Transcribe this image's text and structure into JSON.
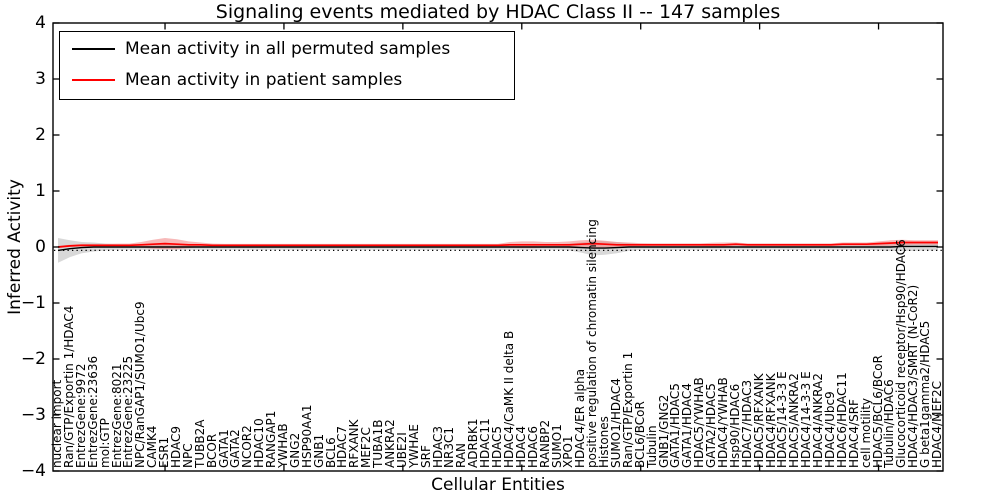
{
  "title": "Signaling events mediated by HDAC Class II -- 147 samples",
  "legend": {
    "entries": [
      {
        "label": "Mean activity in all permuted samples",
        "color": "#000000"
      },
      {
        "label": "Mean activity in patient samples",
        "color": "#ff0000"
      }
    ]
  },
  "axes": {
    "ylabel": "Inferred Activity",
    "xlabel": "Cellular Entities"
  },
  "chart_data": {
    "type": "line",
    "title": "Signaling events mediated by HDAC Class II -- 147 samples",
    "xlabel": "Cellular Entities",
    "ylabel": "Inferred Activity",
    "ylim": [
      -4,
      4
    ],
    "yticks": [
      4,
      3,
      2,
      1,
      0,
      -1,
      -2,
      -3,
      -4
    ],
    "grid": false,
    "legend_position": "upper left",
    "zero_reference_line": {
      "style": "dotted",
      "color": "#000000",
      "value": -0.06
    },
    "band_colors": {
      "permuted": "#d4d4d4",
      "patient": "#f08080"
    },
    "categories": [
      "nuclear import",
      "Ran/GTP/Exportin 1/HDAC4",
      "EntrezGene:9972",
      "EntrezGene:23636",
      "mol:GTP",
      "EntrezGene:8021",
      "EntrezGene:23225",
      "NPC/RanGAP1/SUMO1/Ubc9",
      "CAMK4",
      "ESR1",
      "HDAC9",
      "NPC",
      "TUBB2A",
      "BCOR",
      "GATA1",
      "GATA2",
      "NCOR2",
      "HDAC10",
      "RANGAP1",
      "YWHAB",
      "GNG2",
      "HSP90AA1",
      "GNB1",
      "BCL6",
      "HDAC7",
      "RFXANK",
      "MEF2C",
      "TUBA1B",
      "ANKRA2",
      "UBE2I",
      "YWHAE",
      "SRF",
      "HDAC3",
      "NR3C1",
      "RAN",
      "ADRBK1",
      "HDAC11",
      "HDAC5",
      "HDAC4/CaMK II delta B",
      "HDAC4",
      "HDAC6",
      "RANBP2",
      "SUMO1",
      "XPO1",
      "HDAC4/ER alpha",
      "positive regulation of chromatin silencing",
      "Histones",
      "SUMO1/HDAC4",
      "Ran/GTP/Exportin 1",
      "BCL6/BCoR",
      "Tubulin",
      "GNB1/GNG2",
      "GATA1/HDAC5",
      "GATA1/HDAC4",
      "HDAC5/YWHAB",
      "GATA2/HDAC5",
      "HDAC4/YWHAB",
      "Hsp90/HDAC6",
      "HDAC7/HDAC3",
      "HDAC5/RFXANK",
      "HDAC4/RFXANK",
      "HDAC5/14-3-3 E",
      "HDAC5/ANKRA2",
      "HDAC4/14-3-3 E",
      "HDAC4/ANKRA2",
      "HDAC4/Ubc9",
      "HDAC6/HDAC11",
      "HDAC4/SRF",
      "cell motility",
      "HDAC5/BCL6/BCoR",
      "Tubulin/HDAC6",
      "Glucocorticoid receptor/Hsp90/HDAC6",
      "HDAC4/HDAC3/SMRT (N-CoR2)",
      "G beta1gamma2/HDAC5",
      "HDAC4/MEF2C"
    ],
    "series": [
      {
        "name": "Mean activity in all permuted samples",
        "color": "#000000",
        "band_color": "#d4d4d4",
        "values": [
          -0.06,
          -0.03,
          -0.01,
          0,
          0,
          0,
          0,
          0,
          0,
          0,
          0,
          0,
          0,
          0,
          0,
          0,
          0,
          0,
          0,
          0,
          0,
          0,
          0,
          0,
          0,
          0,
          0,
          0,
          0,
          0,
          0,
          0,
          0,
          0,
          0,
          0,
          0,
          0,
          0,
          0,
          0,
          0,
          0,
          0,
          -0.01,
          -0.02,
          -0.02,
          -0.01,
          0,
          0,
          0,
          0,
          0,
          0,
          0,
          0,
          0,
          0,
          0,
          0,
          0,
          0,
          0,
          0,
          0,
          0,
          0,
          0,
          0,
          0,
          0,
          0.01,
          0.01,
          0.01,
          0.01
        ],
        "band_half_width": [
          0.22,
          0.15,
          0.1,
          0.08,
          0.06,
          0.05,
          0.05,
          0.05,
          0.05,
          0.05,
          0.05,
          0.05,
          0.05,
          0.05,
          0.05,
          0.05,
          0.05,
          0.05,
          0.05,
          0.05,
          0.05,
          0.05,
          0.05,
          0.05,
          0.05,
          0.05,
          0.05,
          0.05,
          0.05,
          0.05,
          0.05,
          0.05,
          0.05,
          0.05,
          0.05,
          0.05,
          0.05,
          0.05,
          0.05,
          0.05,
          0.05,
          0.05,
          0.05,
          0.06,
          0.09,
          0.13,
          0.12,
          0.1,
          0.07,
          0.05,
          0.05,
          0.05,
          0.05,
          0.05,
          0.05,
          0.05,
          0.05,
          0.05,
          0.05,
          0.05,
          0.05,
          0.05,
          0.05,
          0.05,
          0.05,
          0.05,
          0.05,
          0.05,
          0.05,
          0.06,
          0.07,
          0.08,
          0.08,
          0.07,
          0.07
        ]
      },
      {
        "name": "Mean activity in patient samples",
        "color": "#ff0000",
        "band_color": "#f08080",
        "values": [
          0.0,
          0.02,
          0.03,
          0.03,
          0.03,
          0.03,
          0.03,
          0.04,
          0.05,
          0.06,
          0.05,
          0.04,
          0.04,
          0.03,
          0.03,
          0.03,
          0.03,
          0.03,
          0.03,
          0.03,
          0.03,
          0.03,
          0.03,
          0.03,
          0.03,
          0.03,
          0.03,
          0.03,
          0.03,
          0.03,
          0.03,
          0.03,
          0.03,
          0.03,
          0.03,
          0.03,
          0.03,
          0.03,
          0.04,
          0.04,
          0.04,
          0.04,
          0.04,
          0.04,
          0.05,
          0.06,
          0.05,
          0.04,
          0.04,
          0.04,
          0.04,
          0.04,
          0.04,
          0.04,
          0.04,
          0.04,
          0.04,
          0.05,
          0.04,
          0.04,
          0.04,
          0.04,
          0.04,
          0.04,
          0.04,
          0.04,
          0.05,
          0.05,
          0.05,
          0.06,
          0.07,
          0.08,
          0.08,
          0.08,
          0.08
        ],
        "band_half_width": [
          0.02,
          0.02,
          0.025,
          0.025,
          0.025,
          0.03,
          0.03,
          0.05,
          0.08,
          0.1,
          0.09,
          0.06,
          0.04,
          0.03,
          0.025,
          0.025,
          0.025,
          0.025,
          0.025,
          0.025,
          0.025,
          0.025,
          0.025,
          0.025,
          0.025,
          0.025,
          0.025,
          0.025,
          0.025,
          0.025,
          0.025,
          0.025,
          0.025,
          0.025,
          0.025,
          0.025,
          0.025,
          0.025,
          0.05,
          0.06,
          0.06,
          0.05,
          0.05,
          0.06,
          0.07,
          0.07,
          0.06,
          0.05,
          0.04,
          0.03,
          0.025,
          0.025,
          0.025,
          0.025,
          0.025,
          0.035,
          0.04,
          0.03,
          0.025,
          0.025,
          0.025,
          0.025,
          0.025,
          0.025,
          0.025,
          0.025,
          0.03,
          0.03,
          0.03,
          0.04,
          0.05,
          0.05,
          0.04,
          0.04,
          0.04
        ]
      }
    ]
  }
}
